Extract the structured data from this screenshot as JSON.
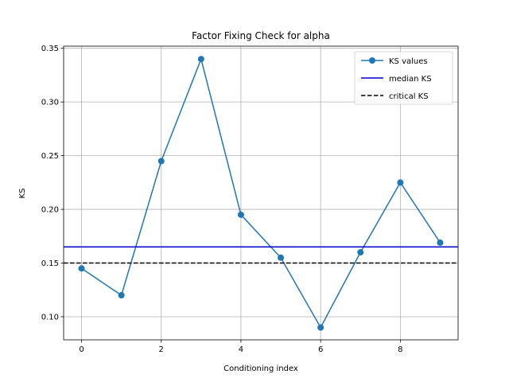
{
  "chart_data": {
    "type": "line",
    "title": "Factor Fixing Check for alpha",
    "xlabel": "Conditioning index",
    "ylabel": "KS",
    "xlim": [
      -0.45,
      9.45
    ],
    "ylim": [
      0.0785,
      0.352
    ],
    "xticks": [
      0,
      2,
      4,
      6,
      8
    ],
    "xtick_labels": [
      "0",
      "2",
      "4",
      "6",
      "8"
    ],
    "yticks": [
      0.1,
      0.15,
      0.2,
      0.25,
      0.3,
      0.35
    ],
    "ytick_labels": [
      "0.10",
      "0.15",
      "0.20",
      "0.25",
      "0.30",
      "0.35"
    ],
    "grid": true,
    "legend_position": "top-right",
    "series": [
      {
        "name": "KS values",
        "color": "#1f77b4",
        "style": "line-marker",
        "x": [
          0,
          1,
          2,
          3,
          4,
          5,
          6,
          7,
          8,
          9
        ],
        "y": [
          0.145,
          0.12,
          0.245,
          0.34,
          0.195,
          0.155,
          0.09,
          0.16,
          0.225,
          0.169
        ]
      },
      {
        "name": "median KS",
        "color": "#0000cc",
        "style": "hline",
        "y": 0.165
      },
      {
        "name": "critical KS",
        "color": "#000000",
        "style": "hline-dashed",
        "y": 0.15
      }
    ]
  }
}
